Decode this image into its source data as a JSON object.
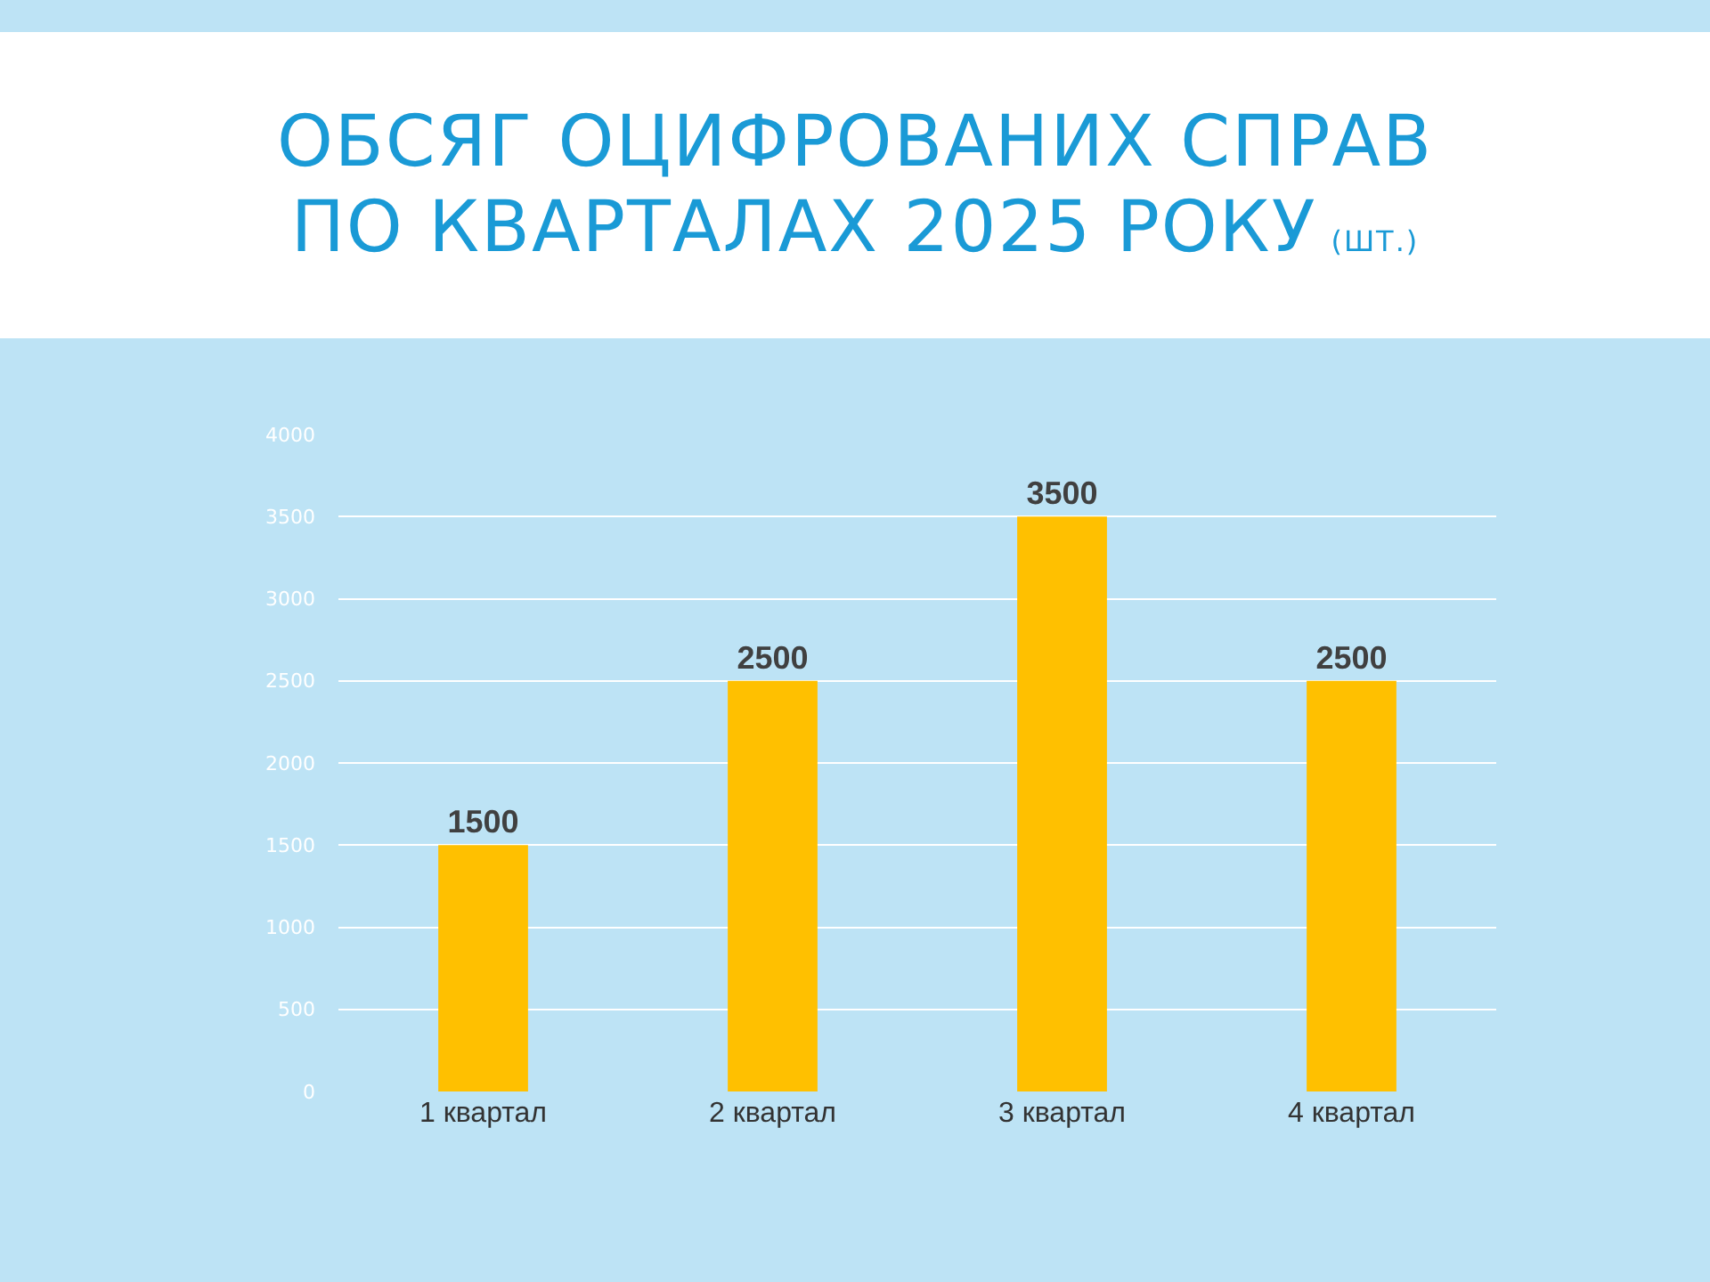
{
  "chart_data": {
    "type": "bar",
    "title": "ОБСЯГ ОЦИФРОВАНИХ СПРАВ\nПО КВАРТАЛАХ 2025 РОКУ",
    "subtitle": "(ШТ.)",
    "categories": [
      "1 квартал",
      "2 квартал",
      "3 квартал",
      "4 квартал"
    ],
    "values": [
      1500,
      2500,
      3500,
      2500
    ],
    "color": "#ffc000",
    "ylim": [
      0,
      4000
    ],
    "yticks": [
      0,
      500,
      1000,
      1500,
      2000,
      2500,
      3000,
      3500,
      4000
    ],
    "grid": "y",
    "data_labels": true,
    "legend": false
  }
}
